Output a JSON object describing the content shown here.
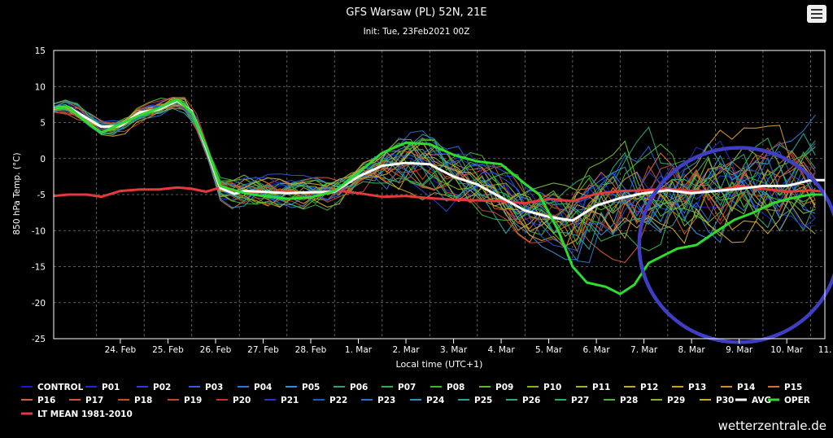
{
  "title": "GFS Warsaw (PL) 52N, 21E",
  "subtitle": "Init: Tue, 23Feb2021 00Z",
  "credit": "wetterzentrale.de",
  "menu_icon": "hamburger-menu-icon",
  "chart_data": {
    "type": "line",
    "title": "GFS Warsaw (PL) 52N, 21E",
    "subtitle": "Init: Tue, 23Feb2021 00Z",
    "xlabel": "Local time (UTC+1)",
    "ylabel": "850 hPa Temp. (°C)",
    "x_tick_labels": [
      "24. Feb",
      "25. Feb",
      "26. Feb",
      "27. Feb",
      "28. Feb",
      "1. Mar",
      "2. Mar",
      "3. Mar",
      "4. Mar",
      "5. Mar",
      "6. Mar",
      "7. Mar",
      "8. Mar",
      "9. Mar",
      "10. Mar",
      "11. Mar"
    ],
    "xlim": [
      23.1,
      39.3
    ],
    "ylim": [
      -25,
      15
    ],
    "y_ticks": [
      15,
      10,
      5,
      0,
      -5,
      -10,
      -15,
      -20,
      -25
    ],
    "grid": true,
    "legend_position": "bottom",
    "annotation": {
      "shape": "circle",
      "color": "#3f3fc4",
      "center": [
        37.5,
        -12
      ],
      "rx_days": 2.1,
      "ry_deg": 13.5
    },
    "series": [
      {
        "name": "CONTROL",
        "color": "#1a1acc"
      },
      {
        "name": "P01",
        "color": "#1e2ec8"
      },
      {
        "name": "P02",
        "color": "#2244cc"
      },
      {
        "name": "P03",
        "color": "#2a62d0"
      },
      {
        "name": "P04",
        "color": "#2c78d2"
      },
      {
        "name": "P05",
        "color": "#2f8ed4"
      },
      {
        "name": "P06",
        "color": "#2ea36a"
      },
      {
        "name": "P07",
        "color": "#34b040"
      },
      {
        "name": "P08",
        "color": "#3cb82c"
      },
      {
        "name": "P09",
        "color": "#5ab82a"
      },
      {
        "name": "P10",
        "color": "#7ab82a"
      },
      {
        "name": "P11",
        "color": "#a6b028"
      },
      {
        "name": "P12",
        "color": "#c6a830"
      },
      {
        "name": "P13",
        "color": "#d09a30"
      },
      {
        "name": "P14",
        "color": "#d2883a"
      },
      {
        "name": "P15",
        "color": "#d07040"
      },
      {
        "name": "P16",
        "color": "#c86438"
      },
      {
        "name": "P17",
        "color": "#cc5a2e"
      },
      {
        "name": "P18",
        "color": "#c84e2a"
      },
      {
        "name": "P19",
        "color": "#c44626"
      },
      {
        "name": "P20",
        "color": "#c03a22"
      },
      {
        "name": "P21",
        "color": "#1c3abe"
      },
      {
        "name": "P22",
        "color": "#2456c4"
      },
      {
        "name": "P23",
        "color": "#2a72ca"
      },
      {
        "name": "P24",
        "color": "#2a90c4"
      },
      {
        "name": "P25",
        "color": "#2aa0a0"
      },
      {
        "name": "P26",
        "color": "#2ea878"
      },
      {
        "name": "P27",
        "color": "#32ae54"
      },
      {
        "name": "P28",
        "color": "#4cb434"
      },
      {
        "name": "P29",
        "color": "#86b42c"
      },
      {
        "name": "P30",
        "color": "#c8aa36"
      },
      {
        "name": "AVG",
        "color": "#ffffff",
        "width": 3,
        "x": [
          23.1,
          23.4,
          23.8,
          24.1,
          24.5,
          24.9,
          25.3,
          25.7,
          26.0,
          26.3,
          26.6,
          26.9,
          27.1,
          27.5,
          28.0,
          28.5,
          29.0,
          29.5,
          30.0,
          30.5,
          31.0,
          31.5,
          32.0,
          32.5,
          33.0,
          33.5,
          34.0,
          34.5,
          35.0,
          35.5,
          36.0,
          36.5,
          37.0,
          37.5,
          38.0,
          38.5,
          39.0,
          39.3
        ],
        "values": [
          7,
          7.2,
          5.6,
          4.4,
          4.5,
          6.4,
          6.8,
          8.0,
          6.6,
          1.5,
          -4.1,
          -4.9,
          -4.5,
          -4.6,
          -4.8,
          -4.7,
          -4.6,
          -2.5,
          -1.0,
          -0.6,
          -0.8,
          -2.5,
          -3.6,
          -5.4,
          -7.2,
          -8.1,
          -8.6,
          -6.5,
          -5.5,
          -4.8,
          -4.4,
          -4.8,
          -4.5,
          -4.2,
          -3.8,
          -3.8,
          -3.0,
          -3.0
        ]
      },
      {
        "name": "OPER",
        "color": "#2ddc2d",
        "width": 3,
        "x": [
          23.1,
          23.4,
          23.8,
          24.1,
          24.5,
          24.9,
          25.3,
          25.7,
          26.0,
          26.3,
          26.6,
          26.9,
          27.1,
          27.5,
          28.0,
          28.5,
          29.0,
          29.5,
          30.0,
          30.5,
          31.0,
          31.5,
          32.0,
          32.5,
          33.0,
          33.3,
          33.7,
          34.0,
          34.3,
          34.7,
          35.0,
          35.3,
          35.6,
          35.9,
          36.2,
          36.6,
          37.0,
          37.4,
          37.8,
          38.2,
          38.6,
          39.0,
          39.3
        ],
        "values": [
          7,
          7.2,
          5.0,
          3.6,
          4.8,
          6.0,
          7.0,
          8.2,
          6.4,
          1.8,
          -3.8,
          -4.4,
          -4.8,
          -5.2,
          -5.6,
          -5.4,
          -4.5,
          -2.0,
          0.8,
          2.2,
          2.0,
          0.5,
          -0.4,
          -0.8,
          -3.5,
          -5.0,
          -10.0,
          -15.0,
          -17.2,
          -17.8,
          -18.8,
          -17.5,
          -14.5,
          -13.5,
          -12.5,
          -12.0,
          -10.2,
          -8.5,
          -7.5,
          -6.2,
          -5.5,
          -5.0,
          -5.0
        ]
      },
      {
        "name": "LT MEAN 1981-2010",
        "color": "#e53a3a",
        "width": 3,
        "x": [
          23.1,
          23.4,
          23.8,
          24.1,
          24.5,
          24.9,
          25.3,
          25.7,
          26.0,
          26.3,
          26.6,
          26.9,
          27.1,
          27.5,
          28.0,
          28.5,
          29.0,
          29.5,
          30.0,
          30.5,
          31.0,
          31.5,
          32.0,
          32.5,
          33.0,
          33.5,
          34.0,
          34.5,
          35.0,
          35.5,
          36.0,
          36.5,
          37.0,
          37.5,
          38.0,
          38.5,
          39.0,
          39.3
        ],
        "values": [
          -5.2,
          -5.0,
          -5.0,
          -5.3,
          -4.5,
          -4.3,
          -4.3,
          -4.0,
          -4.2,
          -4.6,
          -4.0,
          -4.5,
          -4.6,
          -4.7,
          -4.6,
          -4.8,
          -4.4,
          -4.8,
          -5.3,
          -5.2,
          -5.5,
          -5.7,
          -5.8,
          -5.9,
          -6.2,
          -5.6,
          -5.9,
          -4.9,
          -4.5,
          -4.4,
          -4.2,
          -4.5,
          -4.5,
          -3.8,
          -4.2,
          -4.6,
          -4.4,
          -4.6
        ]
      }
    ]
  }
}
